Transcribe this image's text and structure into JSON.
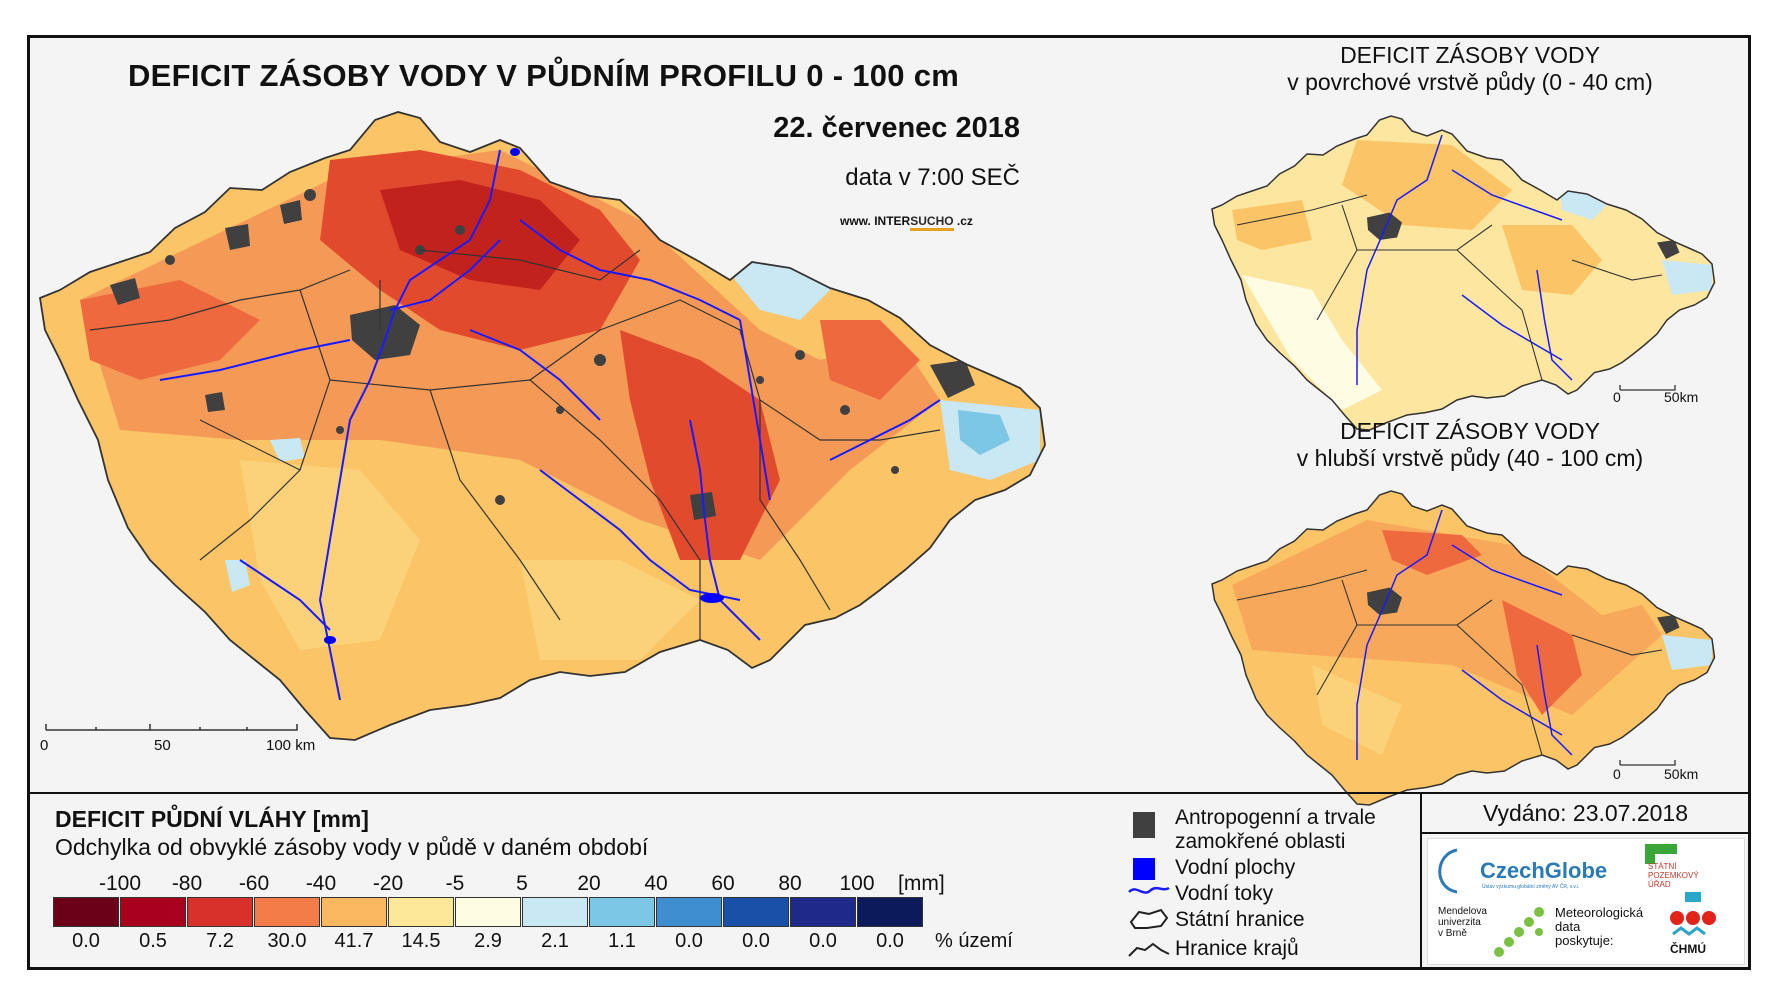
{
  "main_map": {
    "title": "DEFICIT ZÁSOBY VODY V PŮDNÍM PROFILU 0 - 100 cm",
    "date": "22. červenec 2018",
    "time": "data v 7:00 SEČ",
    "website_prefix": "www. INTER",
    "website_highlight": "SUCHO",
    "website_suffix": " .cz",
    "scale": [
      "0",
      "50",
      "100 km"
    ]
  },
  "inset_top": {
    "title_line1": "DEFICIT ZÁSOBY VODY",
    "title_line2": "v povrchové vrstvě půdy (0 - 40 cm)",
    "scale": [
      "0",
      "50km"
    ]
  },
  "inset_bottom": {
    "title_line1": "DEFICIT ZÁSOBY VODY",
    "title_line2": "v hlubší vrstvě půdy (40 - 100 cm)",
    "scale": [
      "0",
      "50km"
    ]
  },
  "legend": {
    "title": "DEFICIT PŮDNÍ VLÁHY [mm]",
    "subtitle": "Odchylka od obvyklé zásoby vody v půdě v daném období",
    "ticks": [
      "-100",
      "-80",
      "-60",
      "-40",
      "-20",
      "-5",
      "5",
      "20",
      "40",
      "60",
      "80",
      "100"
    ],
    "unit": "[mm]",
    "class_colors": [
      "#6b0019",
      "#a8001c",
      "#d8302a",
      "#f47c48",
      "#fbb860",
      "#fde89a",
      "#fefde4",
      "#c9e8f4",
      "#7cc6e6",
      "#3f8fd0",
      "#1a50a8",
      "#1e2a8a",
      "#0c1a5c"
    ],
    "area_percent": [
      "0.0",
      "0.5",
      "7.2",
      "30.0",
      "41.7",
      "14.5",
      "2.9",
      "2.1",
      "1.1",
      "0.0",
      "0.0",
      "0.0",
      "0.0"
    ],
    "area_unit": "% území"
  },
  "key": {
    "anthropogenic_line1": "Antropogenní a trvale",
    "anthropogenic_line2": "zamokřené oblasti",
    "water_bodies": "Vodní plochy",
    "rivers": "Vodní toky",
    "state_border": "Státní hranice",
    "region_border": "Hranice krajů"
  },
  "issued": "Vydáno: 23.07.2018",
  "logos": {
    "czechglobe": "CzechGlobe",
    "czechglobe_sub": "Ústav výzkumu globální změny AV ČR, v.v.i.",
    "spu_line1": "STÁTNÍ",
    "spu_line2": "POZEMKOVÝ",
    "spu_line3": "ÚŘAD",
    "mendel_line1": "Mendelova",
    "mendel_line2": "univerzita",
    "mendel_line3": "v Brně",
    "meteo_line1": "Meteorologická",
    "meteo_line2": "data",
    "meteo_line3": "poskytuje:",
    "chmu": "ČHMÚ"
  },
  "colors": {
    "anthropogenic": "#404040",
    "water": "#0000ff",
    "river": "#1a1aff",
    "border": "#222222"
  }
}
